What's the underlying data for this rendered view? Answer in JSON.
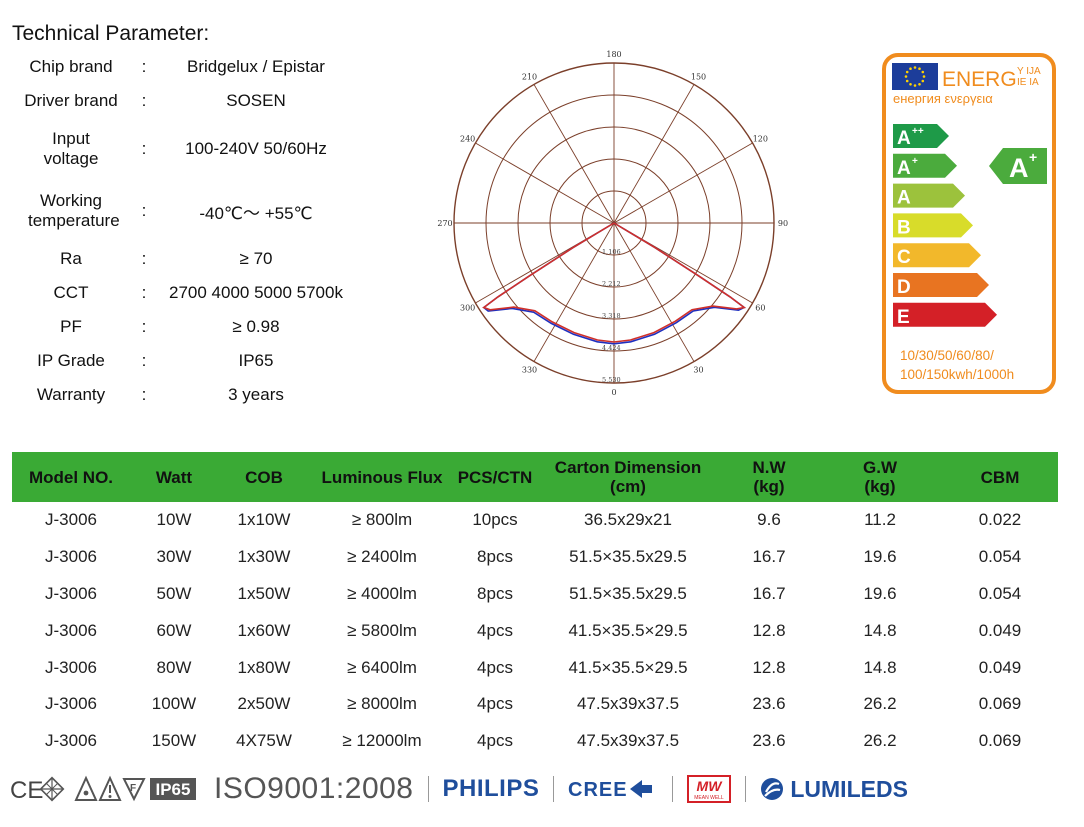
{
  "title": "Technical Parameter:",
  "params": [
    {
      "label": "Chip brand",
      "value": "Bridgelux / Epistar"
    },
    {
      "label": "Driver brand",
      "value": "SOSEN"
    },
    {
      "label": "Input voltage",
      "value": "100-240V 50/60Hz"
    },
    {
      "label": "Working temperature",
      "value": "-40℃～ +55℃"
    },
    {
      "label": "Ra",
      "value": "≥ 70"
    },
    {
      "label": "CCT",
      "value": "2700 4000 5000 5700k"
    },
    {
      "label": "PF",
      "value": "≥ 0.98"
    },
    {
      "label": "IP Grade",
      "value": "IP65"
    },
    {
      "label": "Warranty",
      "value": "3 years"
    }
  ],
  "params_colon": ":",
  "polar": {
    "angle_labels": [
      "180",
      "150",
      "120",
      "90",
      "60",
      "30",
      "0",
      "330",
      "300",
      "270",
      "240",
      "210"
    ],
    "radial_labels": [
      "1,106",
      "2,212",
      "3,318",
      "4,424",
      "5,530"
    ],
    "colors": {
      "grid": "#7b3f2a",
      "series_a": "#1f2fbf",
      "series_b": "#d0302a"
    }
  },
  "energy_label": {
    "header_text": "ENERG",
    "header_stack_top": "Y IJA",
    "header_stack_bottom": "IE IA",
    "sub_text": "енергия  ενεργεια",
    "classes": [
      {
        "label": "A",
        "sup": "++",
        "color": "#1e9a48"
      },
      {
        "label": "A",
        "sup": "+",
        "color": "#4bab3d"
      },
      {
        "label": "A",
        "sup": "",
        "color": "#9cc23c"
      },
      {
        "label": "B",
        "sup": "",
        "color": "#d8dc2a"
      },
      {
        "label": "C",
        "sup": "",
        "color": "#f2b82b"
      },
      {
        "label": "D",
        "sup": "",
        "color": "#e87421"
      },
      {
        "label": "E",
        "sup": "",
        "color": "#d42027"
      }
    ],
    "rating": {
      "label": "A",
      "sup": "+"
    },
    "footnote_line1": "10/30/50/60/80/",
    "footnote_line2": "100/150kwh/1000h",
    "border_color": "#f08c1e"
  },
  "table": {
    "headers": [
      {
        "line1": "Model NO.",
        "line2": ""
      },
      {
        "line1": "Watt",
        "line2": ""
      },
      {
        "line1": "COB",
        "line2": ""
      },
      {
        "line1": "Luminous Flux",
        "line2": ""
      },
      {
        "line1": "PCS/CTN",
        "line2": ""
      },
      {
        "line1": "Carton Dimension",
        "line2": "(cm)"
      },
      {
        "line1": "N.W",
        "line2": "(kg)"
      },
      {
        "line1": "G.W",
        "line2": "(kg)"
      },
      {
        "line1": "CBM",
        "line2": ""
      }
    ],
    "rows": [
      [
        "J-3006",
        "10W",
        "1x10W",
        "≥ 800lm",
        "10pcs",
        "36.5x29x21",
        "9.6",
        "11.2",
        "0.022"
      ],
      [
        "J-3006",
        "30W",
        "1x30W",
        "≥ 2400lm",
        "8pcs",
        "51.5×35.5x29.5",
        "16.7",
        "19.6",
        "0.054"
      ],
      [
        "J-3006",
        "50W",
        "1x50W",
        "≥ 4000lm",
        "8pcs",
        "51.5×35.5x29.5",
        "16.7",
        "19.6",
        "0.054"
      ],
      [
        "J-3006",
        "60W",
        "1x60W",
        "≥ 5800lm",
        "4pcs",
        "41.5×35.5×29.5",
        "12.8",
        "14.8",
        "0.049"
      ],
      [
        "J-3006",
        "80W",
        "1x80W",
        "≥ 6400lm",
        "4pcs",
        "41.5×35.5×29.5",
        "12.8",
        "14.8",
        "0.049"
      ],
      [
        "J-3006",
        "100W",
        "2x50W",
        "≥ 8000lm",
        "4pcs",
        "47.5x39x37.5",
        "23.6",
        "26.2",
        "0.069"
      ],
      [
        "J-3006",
        "150W",
        "4X75W",
        "≥ 12000lm",
        "4pcs",
        "47.5x39x37.5",
        "23.6",
        "26.2",
        "0.069"
      ]
    ]
  },
  "certs": {
    "ce": "CE",
    "ip65": "IP65",
    "iso": "ISO9001:2008",
    "philips": "PHILIPS",
    "cree": "CREE",
    "mw_top": "MW",
    "mw_bottom": "MEAN WELL",
    "lumileds": "LUMILEDS",
    "colors": {
      "brand_blue": "#1f4e9c",
      "mw_red": "#d42027"
    }
  }
}
